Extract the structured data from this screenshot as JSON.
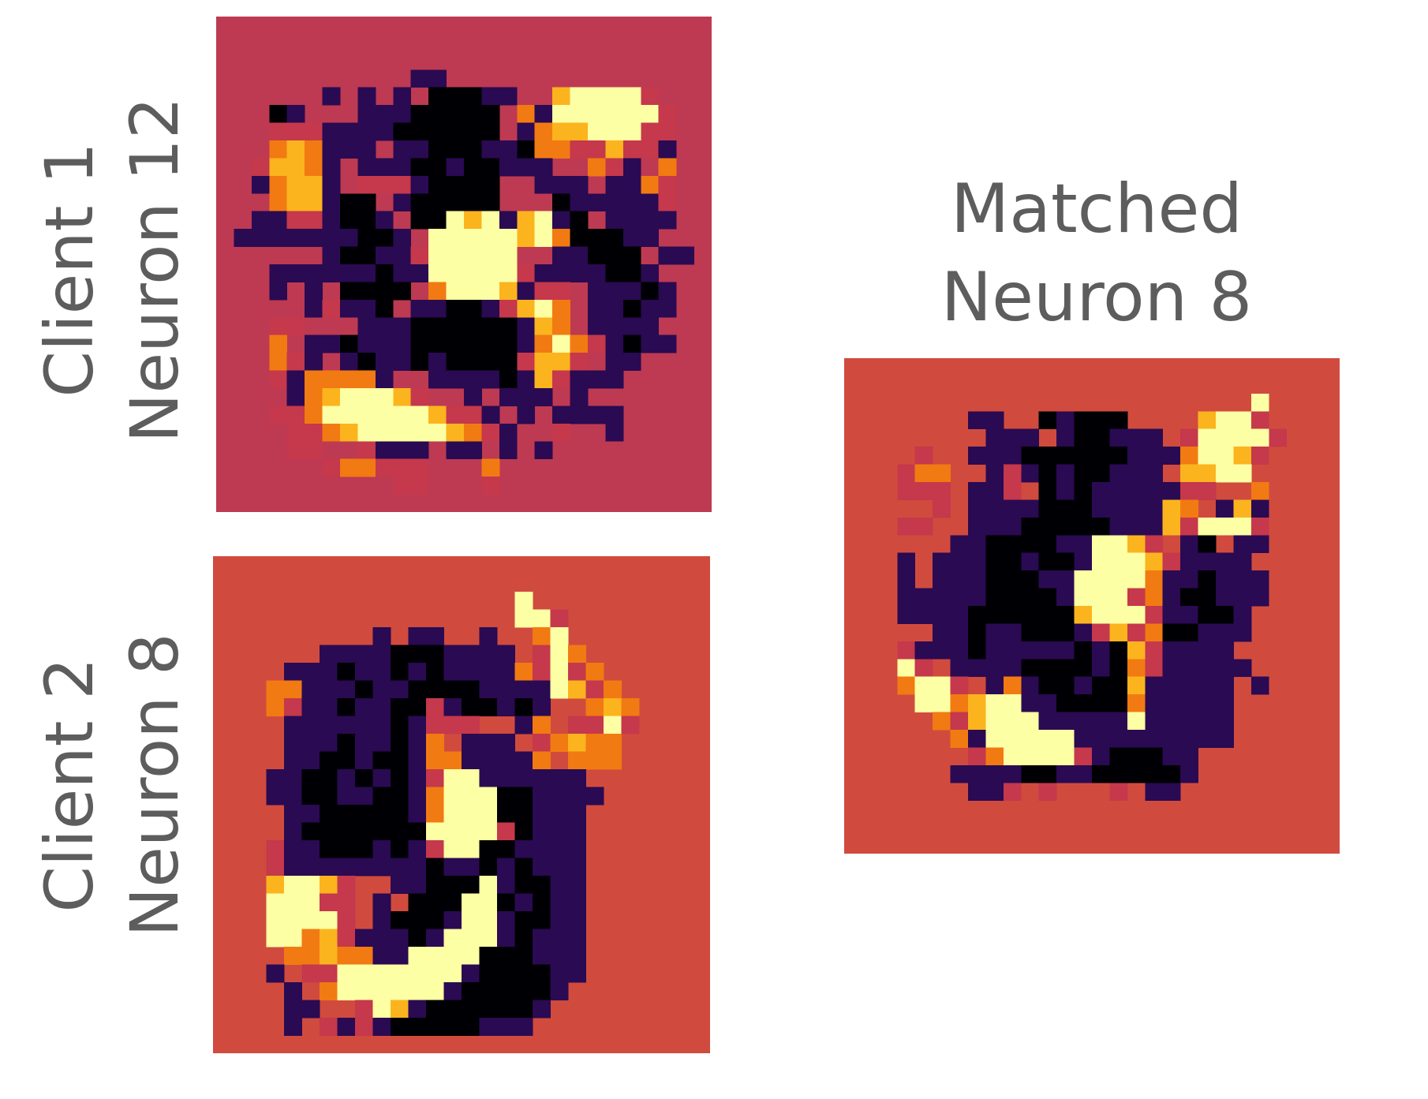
{
  "panels": [
    {
      "client_label": "Client 1",
      "neuron_label": "Neuron 12",
      "background": "#bd3a52",
      "map": [
        "2222222222222222222222222222",
        "2222222222222222222222222222",
        "2222222222222222222222222222",
        "2222222222211222222222222222",
        "2222221212120001122566663222",
        "2220122211100000241666666322",
        "2223331111000000214556663322",
        "2224541112110001104433533122",
        "2235541211100100111224312422",
        "2214551233310000221112114322",
        "2224551002100000222011111322",
        "2211331001200656156102111122",
        "2111111100126666656400011222",
        "2222221001136666622110002112",
        "2221111110116666631111001222",
        "2221212000024666513321110122",
        "2222213110211001356421101122",
        "2223322211100000015421111222",
        "2224211011100000014643101122",
        "2224312101101000035532112222",
        "2223144441221111015311122222",
        "2222145666532212111212222222",
        "2223346666665331212111122222",
        "2222334566666543122322122222",
        "2222332231112112121222222222",
        "2222223443332224222222222222",
        "2222222222332223222222222222",
        "2222222222222222222222222222"
      ]
    },
    {
      "client_label": "Client 2",
      "neuron_label": "Neuron 8",
      "background": "#d04b3e",
      "map": [
        "2222222222222222222222222222",
        "2222222222222222222222222222",
        "2222222222222222262222222222",
        "2222222222222222266322222222",
        "2222222221211221224622222222",
        "2222221111000111123642222222",
        "2222111011010111143634222222",
        "2224411101100001111653422222",
        "2224311011003100101224542222",
        "2222111111013332214233632222",
        "2222111011014211123454422222",
        "2222110010014411114244422222",
        "2221100101013661111112222222",
        "2221100110014666001111222222",
        "2222110000014666001112222222",
        "2222100000006666301112222222",
        "2223110001013660011112222222",
        "2223111111110110101112222222",
        "2225665322110006100112222222",
        "2226663321200066010112222222",
        "2226666321000166100112222222",
        "2226645311101666101112222222",
        "2222445441166660001112222222",
        "2221233666666610000112222222",
        "2222124666666100000122222222",
        "2222112236510000001222222222",
        "2222123131000001112222222222",
        "2222222222222222222222222222"
      ]
    },
    {
      "title_line1": "Matched",
      "title_line2": "Neuron 8",
      "background": "#d04b3e",
      "map": [
        "2222222222222222222222222222",
        "2222222222222222222222222222",
        "2222222222222222222222262222",
        "2222222112201000222256632222",
        "2222222211121001112366663222",
        "2222322111000000111466532222",
        "2223442213101001112556622222",
        "2223332113201011111332242222",
        "2222232111100011115421512222",
        "2223322111000001115366632222",
        "2222221100001166532102112222",
        "2221211100100166653111122222",
        "2221211100011666641101112222",
        "2221111100001666341001112222",
        "2221111000000566631100122222",
        "2222211011000135340011122222",
        "2223111011111010531111222222",
        "2226321111000010431111122222",
        "2224663214100100511111212222",
        "2222664566110000411111222222",
        "2222243566611111611111222222",
        "2222224166666111111111222222",
        "2222222346666310001122222222",
        "2222221111001100000122222222",
        "2222222113232223211222222222",
        "2222222222222222222222222222",
        "2222222222222222222222222222",
        "2222222222222222222222222222"
      ]
    }
  ],
  "palette": [
    "#000004",
    "#2a0a52",
    "#7a1c6d",
    "#c6384b",
    "#f27a12",
    "#fbb41e",
    "#fcffa4"
  ]
}
